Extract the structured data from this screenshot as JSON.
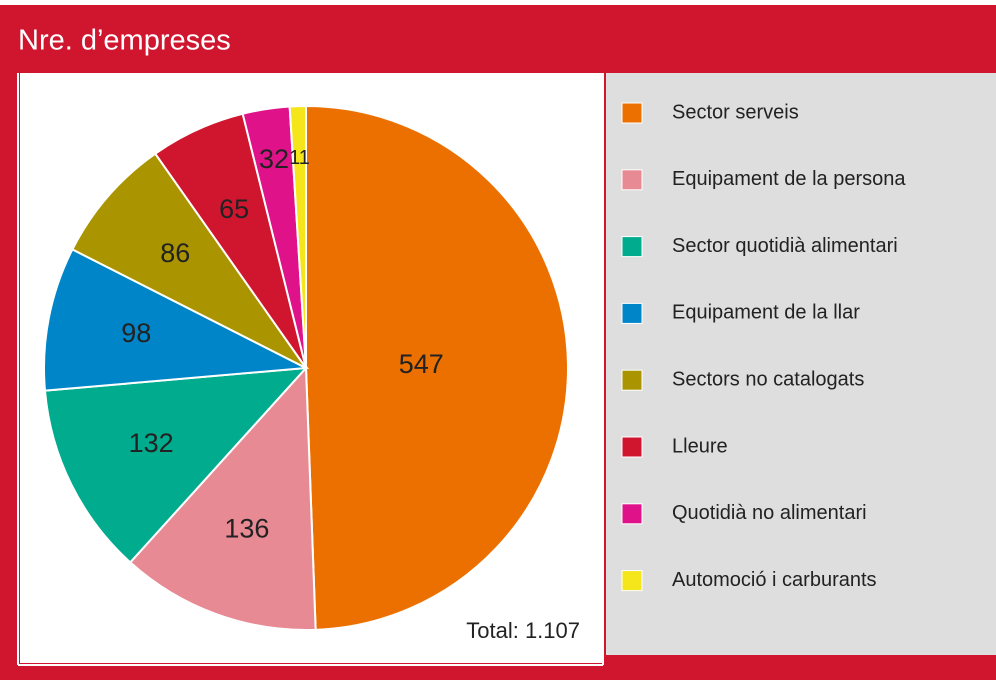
{
  "chart_data": {
    "type": "pie",
    "title": "Nre. d’empreses",
    "categories": [
      "Sector serveis",
      "Equipament de la persona",
      "Sector quotidià alimentari",
      "Equipament de la llar",
      "Sectors no catalogats",
      "Lleure",
      "Quotidià no alimentari",
      "Automoció i carburants"
    ],
    "values": [
      547,
      136,
      132,
      98,
      86,
      65,
      32,
      11
    ],
    "colors": [
      "#ec7000",
      "#e88a94",
      "#00ab8e",
      "#0085c8",
      "#aa9500",
      "#d0152f",
      "#e0128a",
      "#f5e51b"
    ],
    "total_label": "Total: 1.107"
  }
}
